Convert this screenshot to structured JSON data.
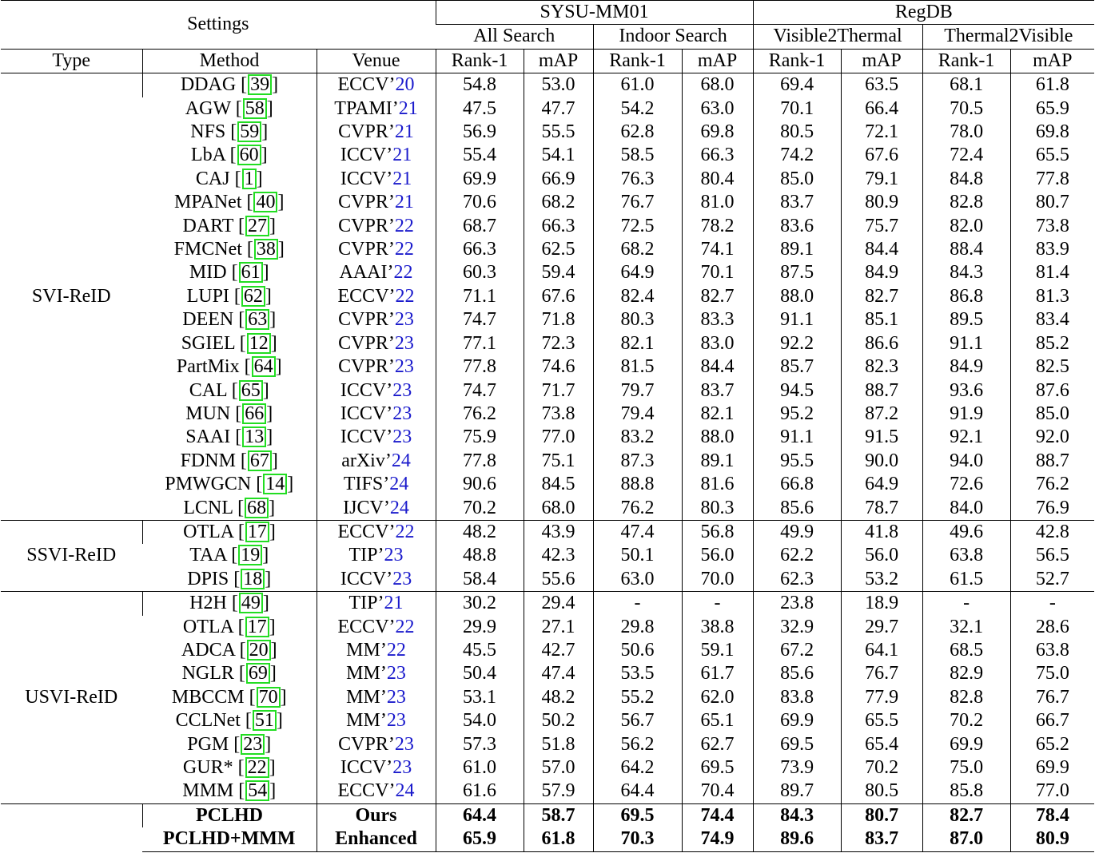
{
  "header": {
    "settings": "Settings",
    "datasets": [
      {
        "name": "SYSU-MM01",
        "modes": [
          "All Search",
          "Indoor Search"
        ]
      },
      {
        "name": "RegDB",
        "modes": [
          "Visible2Thermal",
          "Thermal2Visible"
        ]
      }
    ],
    "columns": {
      "type": "Type",
      "method": "Method",
      "venue": "Venue",
      "rank1": "Rank-1",
      "map": "mAP"
    }
  },
  "colors": {
    "citation_box": "#22dd22",
    "venue_year": "#1a1acc"
  },
  "groups": [
    {
      "type": "SVI-ReID",
      "rows": [
        {
          "method": "DDAG",
          "ref": "39",
          "venue": "ECCV’",
          "year": "20",
          "values": [
            "54.8",
            "53.0",
            "61.0",
            "68.0",
            "69.4",
            "63.5",
            "68.1",
            "61.8"
          ]
        },
        {
          "method": "AGW",
          "ref": "58",
          "venue": "TPAMI’",
          "year": "21",
          "values": [
            "47.5",
            "47.7",
            "54.2",
            "63.0",
            "70.1",
            "66.4",
            "70.5",
            "65.9"
          ]
        },
        {
          "method": "NFS",
          "ref": "59",
          "venue": "CVPR’",
          "year": "21",
          "values": [
            "56.9",
            "55.5",
            "62.8",
            "69.8",
            "80.5",
            "72.1",
            "78.0",
            "69.8"
          ]
        },
        {
          "method": "LbA",
          "ref": "60",
          "venue": "ICCV’",
          "year": "21",
          "values": [
            "55.4",
            "54.1",
            "58.5",
            "66.3",
            "74.2",
            "67.6",
            "72.4",
            "65.5"
          ]
        },
        {
          "method": "CAJ",
          "ref": "1",
          "venue": "ICCV’",
          "year": "21",
          "values": [
            "69.9",
            "66.9",
            "76.3",
            "80.4",
            "85.0",
            "79.1",
            "84.8",
            "77.8"
          ]
        },
        {
          "method": "MPANet",
          "ref": "40",
          "venue": "CVPR’",
          "year": "21",
          "values": [
            "70.6",
            "68.2",
            "76.7",
            "81.0",
            "83.7",
            "80.9",
            "82.8",
            "80.7"
          ]
        },
        {
          "method": "DART",
          "ref": "27",
          "venue": "CVPR’",
          "year": "22",
          "values": [
            "68.7",
            "66.3",
            "72.5",
            "78.2",
            "83.6",
            "75.7",
            "82.0",
            "73.8"
          ]
        },
        {
          "method": "FMCNet",
          "ref": "38",
          "venue": "CVPR’",
          "year": "22",
          "values": [
            "66.3",
            "62.5",
            "68.2",
            "74.1",
            "89.1",
            "84.4",
            "88.4",
            "83.9"
          ]
        },
        {
          "method": "MID",
          "ref": "61",
          "venue": "AAAI’",
          "year": "22",
          "values": [
            "60.3",
            "59.4",
            "64.9",
            "70.1",
            "87.5",
            "84.9",
            "84.3",
            "81.4"
          ]
        },
        {
          "method": "LUPI",
          "ref": "62",
          "venue": "ECCV’",
          "year": "22",
          "values": [
            "71.1",
            "67.6",
            "82.4",
            "82.7",
            "88.0",
            "82.7",
            "86.8",
            "81.3"
          ]
        },
        {
          "method": "DEEN",
          "ref": "63",
          "venue": "CVPR’",
          "year": "23",
          "values": [
            "74.7",
            "71.8",
            "80.3",
            "83.3",
            "91.1",
            "85.1",
            "89.5",
            "83.4"
          ]
        },
        {
          "method": "SGIEL",
          "ref": "12",
          "venue": "CVPR’",
          "year": "23",
          "values": [
            "77.1",
            "72.3",
            "82.1",
            "83.0",
            "92.2",
            "86.6",
            "91.1",
            "85.2"
          ]
        },
        {
          "method": "PartMix",
          "ref": "64",
          "venue": "CVPR’",
          "year": "23",
          "values": [
            "77.8",
            "74.6",
            "81.5",
            "84.4",
            "85.7",
            "82.3",
            "84.9",
            "82.5"
          ]
        },
        {
          "method": "CAL",
          "ref": "65",
          "venue": "ICCV’",
          "year": "23",
          "values": [
            "74.7",
            "71.7",
            "79.7",
            "83.7",
            "94.5",
            "88.7",
            "93.6",
            "87.6"
          ]
        },
        {
          "method": "MUN",
          "ref": "66",
          "venue": "ICCV’",
          "year": "23",
          "values": [
            "76.2",
            "73.8",
            "79.4",
            "82.1",
            "95.2",
            "87.2",
            "91.9",
            "85.0"
          ]
        },
        {
          "method": "SAAI",
          "ref": "13",
          "venue": "ICCV’",
          "year": "23",
          "values": [
            "75.9",
            "77.0",
            "83.2",
            "88.0",
            "91.1",
            "91.5",
            "92.1",
            "92.0"
          ]
        },
        {
          "method": "FDNM",
          "ref": "67",
          "venue": "arXiv’",
          "year": "24",
          "values": [
            "77.8",
            "75.1",
            "87.3",
            "89.1",
            "95.5",
            "90.0",
            "94.0",
            "88.7"
          ]
        },
        {
          "method": "PMWGCN",
          "ref": "14",
          "venue": "TIFS’",
          "year": "24",
          "values": [
            "90.6",
            "84.5",
            "88.8",
            "81.6",
            "66.8",
            "64.9",
            "72.6",
            "76.2"
          ]
        },
        {
          "method": "LCNL",
          "ref": "68",
          "venue": "IJCV’",
          "year": "24",
          "values": [
            "70.2",
            "68.0",
            "76.2",
            "80.3",
            "85.6",
            "78.7",
            "84.0",
            "76.9"
          ]
        }
      ]
    },
    {
      "type": "SSVI-ReID",
      "rows": [
        {
          "method": "OTLA",
          "ref": "17",
          "venue": "ECCV’",
          "year": "22",
          "values": [
            "48.2",
            "43.9",
            "47.4",
            "56.8",
            "49.9",
            "41.8",
            "49.6",
            "42.8"
          ]
        },
        {
          "method": "TAA",
          "ref": "19",
          "venue": "TIP’",
          "year": "23",
          "values": [
            "48.8",
            "42.3",
            "50.1",
            "56.0",
            "62.2",
            "56.0",
            "63.8",
            "56.5"
          ]
        },
        {
          "method": "DPIS",
          "ref": "18",
          "venue": "ICCV’",
          "year": "23",
          "values": [
            "58.4",
            "55.6",
            "63.0",
            "70.0",
            "62.3",
            "53.2",
            "61.5",
            "52.7"
          ]
        }
      ]
    },
    {
      "type": "USVI-ReID",
      "rows": [
        {
          "method": "H2H",
          "ref": "49",
          "venue": "TIP’",
          "year": "21",
          "values": [
            "30.2",
            "29.4",
            "-",
            "-",
            "23.8",
            "18.9",
            "-",
            "-"
          ]
        },
        {
          "method": "OTLA",
          "ref": "17",
          "venue": "ECCV’",
          "year": "22",
          "values": [
            "29.9",
            "27.1",
            "29.8",
            "38.8",
            "32.9",
            "29.7",
            "32.1",
            "28.6"
          ]
        },
        {
          "method": "ADCA",
          "ref": "20",
          "venue": "MM’",
          "year": "22",
          "values": [
            "45.5",
            "42.7",
            "50.6",
            "59.1",
            "67.2",
            "64.1",
            "68.5",
            "63.8"
          ]
        },
        {
          "method": "NGLR",
          "ref": "69",
          "venue": "MM’",
          "year": "23",
          "values": [
            "50.4",
            "47.4",
            "53.5",
            "61.7",
            "85.6",
            "76.7",
            "82.9",
            "75.0"
          ]
        },
        {
          "method": "MBCCM",
          "ref": "70",
          "venue": "MM’",
          "year": "23",
          "values": [
            "53.1",
            "48.2",
            "55.2",
            "62.0",
            "83.8",
            "77.9",
            "82.8",
            "76.7"
          ]
        },
        {
          "method": "CCLNet",
          "ref": "51",
          "venue": "MM’",
          "year": "23",
          "values": [
            "54.0",
            "50.2",
            "56.7",
            "65.1",
            "69.9",
            "65.5",
            "70.2",
            "66.7"
          ]
        },
        {
          "method": "PGM",
          "ref": "23",
          "venue": "CVPR’",
          "year": "23",
          "values": [
            "57.3",
            "51.8",
            "56.2",
            "62.7",
            "69.5",
            "65.4",
            "69.9",
            "65.2"
          ]
        },
        {
          "method": "GUR*",
          "ref": "22",
          "venue": "ICCV’",
          "year": "23",
          "values": [
            "61.0",
            "57.0",
            "64.2",
            "69.5",
            "73.9",
            "70.2",
            "75.0",
            "69.9"
          ]
        },
        {
          "method": "MMM",
          "ref": "54",
          "venue": "ECCV’",
          "year": "24",
          "values": [
            "61.6",
            "57.9",
            "64.4",
            "70.4",
            "89.7",
            "80.5",
            "85.8",
            "77.0"
          ]
        }
      ]
    }
  ],
  "final": [
    {
      "method": "PCLHD",
      "venue": "Ours",
      "values": [
        "64.4",
        "58.7",
        "69.5",
        "74.4",
        "84.3",
        "80.7",
        "82.7",
        "78.4"
      ]
    },
    {
      "method": "PCLHD+MMM",
      "venue": "Enhanced",
      "values": [
        "65.9",
        "61.8",
        "70.3",
        "74.9",
        "89.6",
        "83.7",
        "87.0",
        "80.9"
      ]
    }
  ]
}
